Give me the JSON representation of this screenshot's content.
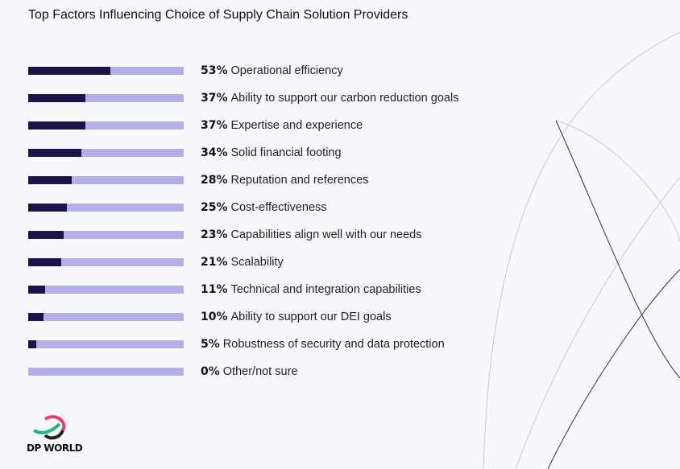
{
  "chart_data": {
    "type": "bar",
    "orientation": "horizontal",
    "title": "Top Factors Influencing Choice of Supply Chain Solution Providers",
    "categories": [
      "Operational efficiency",
      "Ability to support our carbon reduction goals",
      "Expertise and experience",
      "Solid financial footing",
      "Reputation and references",
      "Cost-effectiveness",
      "Capabilities align well with our needs",
      "Scalability",
      "Technical and integration capabilities",
      "Ability to support our DEI goals",
      "Robustness of security and data protection",
      "Other/not sure"
    ],
    "values": [
      53,
      37,
      37,
      34,
      28,
      25,
      23,
      21,
      11,
      10,
      5,
      0
    ],
    "unit": "%",
    "xlim": [
      0,
      100
    ],
    "colors": {
      "fill": "#1c1449",
      "track": "#b4afe9",
      "background": "#f8f8fc"
    }
  },
  "brand": {
    "logo_text": "DP WORLD"
  }
}
